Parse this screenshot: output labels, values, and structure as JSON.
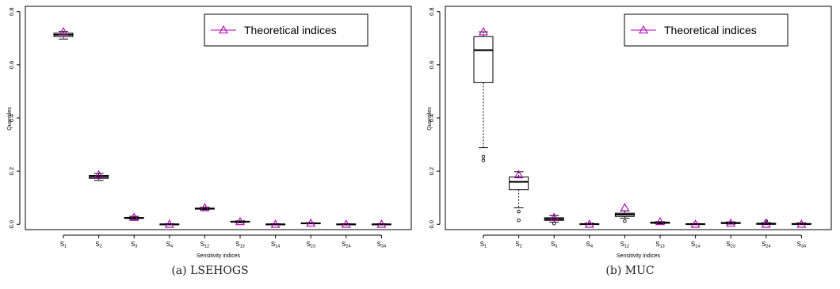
{
  "captions": [
    "(a) LSEHOGS",
    "(b) MUC"
  ],
  "chart_data": [
    {
      "type": "boxplot",
      "subtitle": "(a) LSEHOGS",
      "xlabel": "Sensitivity indices",
      "ylabel": "Quantiles",
      "categories": [
        {
          "base": "S",
          "sub": "1"
        },
        {
          "base": "S",
          "sub": "2"
        },
        {
          "base": "S",
          "sub": "3"
        },
        {
          "base": "S",
          "sub": "4"
        },
        {
          "base": "S",
          "sub": "12"
        },
        {
          "base": "S",
          "sub": "13"
        },
        {
          "base": "S",
          "sub": "14"
        },
        {
          "base": "S",
          "sub": "23"
        },
        {
          "base": "S",
          "sub": "24"
        },
        {
          "base": "S",
          "sub": "34"
        }
      ],
      "yticks": [
        "0.0",
        "0.2",
        "0.4",
        "0.6",
        "0.8"
      ],
      "ylim": [
        -0.02,
        0.82
      ],
      "boxes": [
        {
          "whisker_low": 0.697,
          "q1": 0.706,
          "median": 0.713,
          "q3": 0.719,
          "whisker_high": 0.726,
          "outliers": []
        },
        {
          "whisker_low": 0.165,
          "q1": 0.173,
          "median": 0.179,
          "q3": 0.184,
          "whisker_high": 0.191,
          "outliers": []
        },
        {
          "whisker_low": 0.019,
          "q1": 0.022,
          "median": 0.024,
          "q3": 0.026,
          "whisker_high": 0.03,
          "outliers": []
        },
        {
          "whisker_low": -0.001,
          "q1": 0.0,
          "median": 0.0,
          "q3": 0.001,
          "whisker_high": 0.002,
          "outliers": []
        },
        {
          "whisker_low": 0.055,
          "q1": 0.057,
          "median": 0.059,
          "q3": 0.061,
          "whisker_high": 0.064,
          "outliers": []
        },
        {
          "whisker_low": 0.006,
          "q1": 0.008,
          "median": 0.01,
          "q3": 0.011,
          "whisker_high": 0.013,
          "outliers": []
        },
        {
          "whisker_low": -0.001,
          "q1": 0.0,
          "median": 0.0,
          "q3": 0.001,
          "whisker_high": 0.002,
          "outliers": []
        },
        {
          "whisker_low": 0.002,
          "q1": 0.003,
          "median": 0.004,
          "q3": 0.005,
          "whisker_high": 0.006,
          "outliers": []
        },
        {
          "whisker_low": -0.001,
          "q1": 0.0,
          "median": 0.0,
          "q3": 0.001,
          "whisker_high": 0.002,
          "outliers": []
        },
        {
          "whisker_low": -0.001,
          "q1": 0.0,
          "median": 0.0,
          "q3": 0.001,
          "whisker_high": 0.002,
          "outliers": []
        }
      ],
      "series": [
        {
          "name": "Theoretical indices",
          "marker": "open-triangle",
          "color": "#b000b5",
          "values": [
            0.724,
            0.186,
            0.026,
            0.0,
            0.062,
            0.01,
            0.0,
            0.004,
            0.0,
            0.0
          ]
        }
      ],
      "legend": {
        "placement": "top-right",
        "label": "Theoretical indices"
      },
      "grid": false
    },
    {
      "type": "boxplot",
      "subtitle": "(b) MUC",
      "xlabel": "Sensitivity indices",
      "ylabel": "Quantiles",
      "categories": [
        {
          "base": "S",
          "sub": "1"
        },
        {
          "base": "S",
          "sub": "2"
        },
        {
          "base": "S",
          "sub": "3"
        },
        {
          "base": "S",
          "sub": "4"
        },
        {
          "base": "S",
          "sub": "12"
        },
        {
          "base": "S",
          "sub": "13"
        },
        {
          "base": "S",
          "sub": "14"
        },
        {
          "base": "S",
          "sub": "23"
        },
        {
          "base": "S",
          "sub": "24"
        },
        {
          "base": "S",
          "sub": "34"
        }
      ],
      "yticks": [
        "0.0",
        "0.2",
        "0.4",
        "0.6",
        "0.8"
      ],
      "ylim": [
        -0.02,
        0.82
      ],
      "boxes": [
        {
          "whisker_low": 0.288,
          "q1": 0.533,
          "median": 0.655,
          "q3": 0.706,
          "whisker_high": 0.724,
          "outliers": [
            0.254,
            0.24
          ]
        },
        {
          "whisker_low": 0.062,
          "q1": 0.13,
          "median": 0.16,
          "q3": 0.178,
          "whisker_high": 0.198,
          "outliers": [
            0.048,
            0.015
          ]
        },
        {
          "whisker_low": 0.008,
          "q1": 0.015,
          "median": 0.02,
          "q3": 0.025,
          "whisker_high": 0.033,
          "outliers": [
            0.003
          ]
        },
        {
          "whisker_low": -0.001,
          "q1": 0.0,
          "median": 0.001,
          "q3": 0.002,
          "whisker_high": 0.004,
          "outliers": []
        },
        {
          "whisker_low": 0.023,
          "q1": 0.03,
          "median": 0.037,
          "q3": 0.042,
          "whisker_high": 0.05,
          "outliers": [
            0.012
          ]
        },
        {
          "whisker_low": 0.002,
          "q1": 0.004,
          "median": 0.006,
          "q3": 0.008,
          "whisker_high": 0.01,
          "outliers": []
        },
        {
          "whisker_low": -0.001,
          "q1": 0.0,
          "median": 0.001,
          "q3": 0.002,
          "whisker_high": 0.003,
          "outliers": []
        },
        {
          "whisker_low": 0.001,
          "q1": 0.003,
          "median": 0.005,
          "q3": 0.007,
          "whisker_high": 0.009,
          "outliers": []
        },
        {
          "whisker_low": -0.001,
          "q1": 0.0,
          "median": 0.002,
          "q3": 0.004,
          "whisker_high": 0.006,
          "outliers": [
            0.012
          ]
        },
        {
          "whisker_low": -0.001,
          "q1": 0.0,
          "median": 0.001,
          "q3": 0.003,
          "whisker_high": 0.005,
          "outliers": []
        }
      ],
      "series": [
        {
          "name": "Theoretical indices",
          "marker": "open-triangle",
          "color": "#b000b5",
          "values": [
            0.724,
            0.186,
            0.026,
            0.0,
            0.062,
            0.01,
            0.0,
            0.004,
            0.0,
            0.0
          ]
        }
      ],
      "legend": {
        "placement": "top-right",
        "label": "Theoretical indices"
      },
      "grid": false
    }
  ]
}
